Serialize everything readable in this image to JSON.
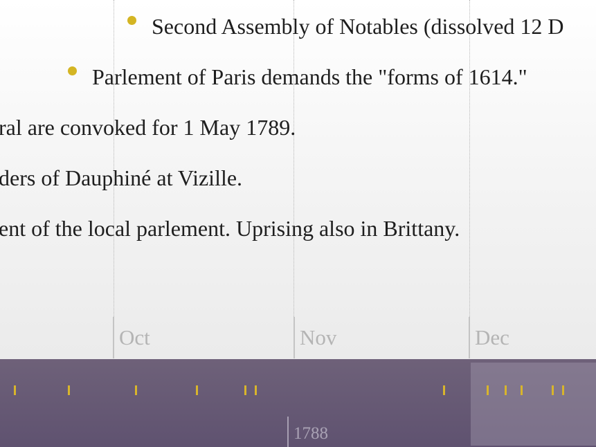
{
  "timeline": {
    "months": [
      {
        "label": "Oct"
      },
      {
        "label": "Nov"
      },
      {
        "label": "Dec"
      }
    ],
    "events": [
      {
        "text": "Second Assembly of Notables (dissolved 12 D",
        "bullet": true
      },
      {
        "text": "Parlement of Paris demands the \"forms of 1614.\"",
        "bullet": true
      },
      {
        "text": "ral are convoked for 1 May 1789.",
        "bullet": false
      },
      {
        "text": "ders of Dauphiné at Vizille.",
        "bullet": false
      },
      {
        "text": "ent of the local parlement. Uprising also in Brittany.",
        "bullet": false
      }
    ]
  },
  "navigator": {
    "year_label": "1788",
    "tick_count": 14
  },
  "colors": {
    "accent_gold": "#d4b523",
    "nav_band": "#5f5270",
    "month_label": "#b4b4b4"
  }
}
